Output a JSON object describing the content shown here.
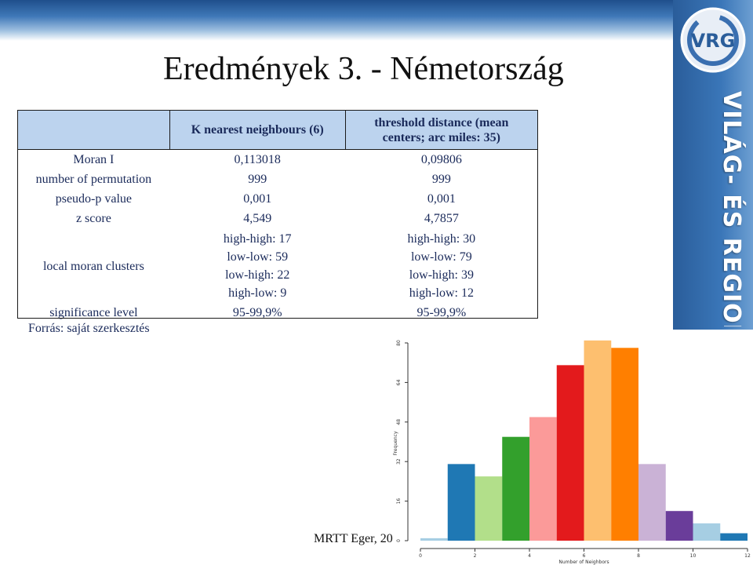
{
  "slide": {
    "title": "Eredmények 3. - Németország",
    "source": "Forrás: saját szerkesztés",
    "footer": "MRTT Eger, 20",
    "side_text": "VILÁG- ÉS REGIONÁLIS G",
    "logo_text": "VRG"
  },
  "table": {
    "headers": [
      "",
      "K nearest neighbours (6)",
      "threshold distance (mean centers; arc miles: 35)"
    ],
    "rows": [
      {
        "label": "Moran I",
        "knn": "0,113018",
        "threshold": "0,09806"
      },
      {
        "label": "number of permutation",
        "knn": "999",
        "threshold": "999"
      },
      {
        "label": "pseudo-p value",
        "knn": "0,001",
        "threshold": "0,001"
      },
      {
        "label": "z score",
        "knn": "4,549",
        "threshold": "4,7857"
      }
    ],
    "clusters": {
      "label": "local moran clusters",
      "knn": [
        "high-high: 17",
        "low-low: 59",
        "low-high: 22",
        "high-low: 9"
      ],
      "threshold": [
        "high-high: 30",
        "low-low: 79",
        "low-high: 39",
        "high-low: 12"
      ]
    },
    "significance": {
      "label": "significance level",
      "knn": "95-99,9%",
      "threshold": "95-99,9%"
    }
  },
  "chart_data": {
    "type": "bar",
    "title": "",
    "xlabel": "Number of Neighbors",
    "ylabel": "Frequency",
    "x_ticks": [
      "0",
      "2",
      "4",
      "6",
      "8",
      "10",
      "12"
    ],
    "y_ticks": [
      "0",
      "16",
      "32",
      "48",
      "64",
      "80"
    ],
    "xlim": [
      0,
      12
    ],
    "ylim": [
      0,
      80
    ],
    "bins": [
      {
        "x0": 0,
        "x1": 1,
        "value": 1,
        "color": "#a6cee3"
      },
      {
        "x0": 1,
        "x1": 2,
        "value": 31,
        "color": "#1f78b4"
      },
      {
        "x0": 2,
        "x1": 3,
        "value": 26,
        "color": "#b2df8a"
      },
      {
        "x0": 3,
        "x1": 4,
        "value": 42,
        "color": "#33a02c"
      },
      {
        "x0": 4,
        "x1": 5,
        "value": 50,
        "color": "#fb9a99"
      },
      {
        "x0": 5,
        "x1": 6,
        "value": 71,
        "color": "#e31a1c"
      },
      {
        "x0": 6,
        "x1": 7,
        "value": 81,
        "color": "#fdbf6f"
      },
      {
        "x0": 7,
        "x1": 8,
        "value": 78,
        "color": "#ff7f00"
      },
      {
        "x0": 8,
        "x1": 9,
        "value": 31,
        "color": "#cab2d6"
      },
      {
        "x0": 9,
        "x1": 10,
        "value": 12,
        "color": "#6a3d9a"
      },
      {
        "x0": 10,
        "x1": 11,
        "value": 7,
        "color": "#a6cee3"
      },
      {
        "x0": 11,
        "x1": 12,
        "value": 3,
        "color": "#1f78b4"
      }
    ]
  }
}
